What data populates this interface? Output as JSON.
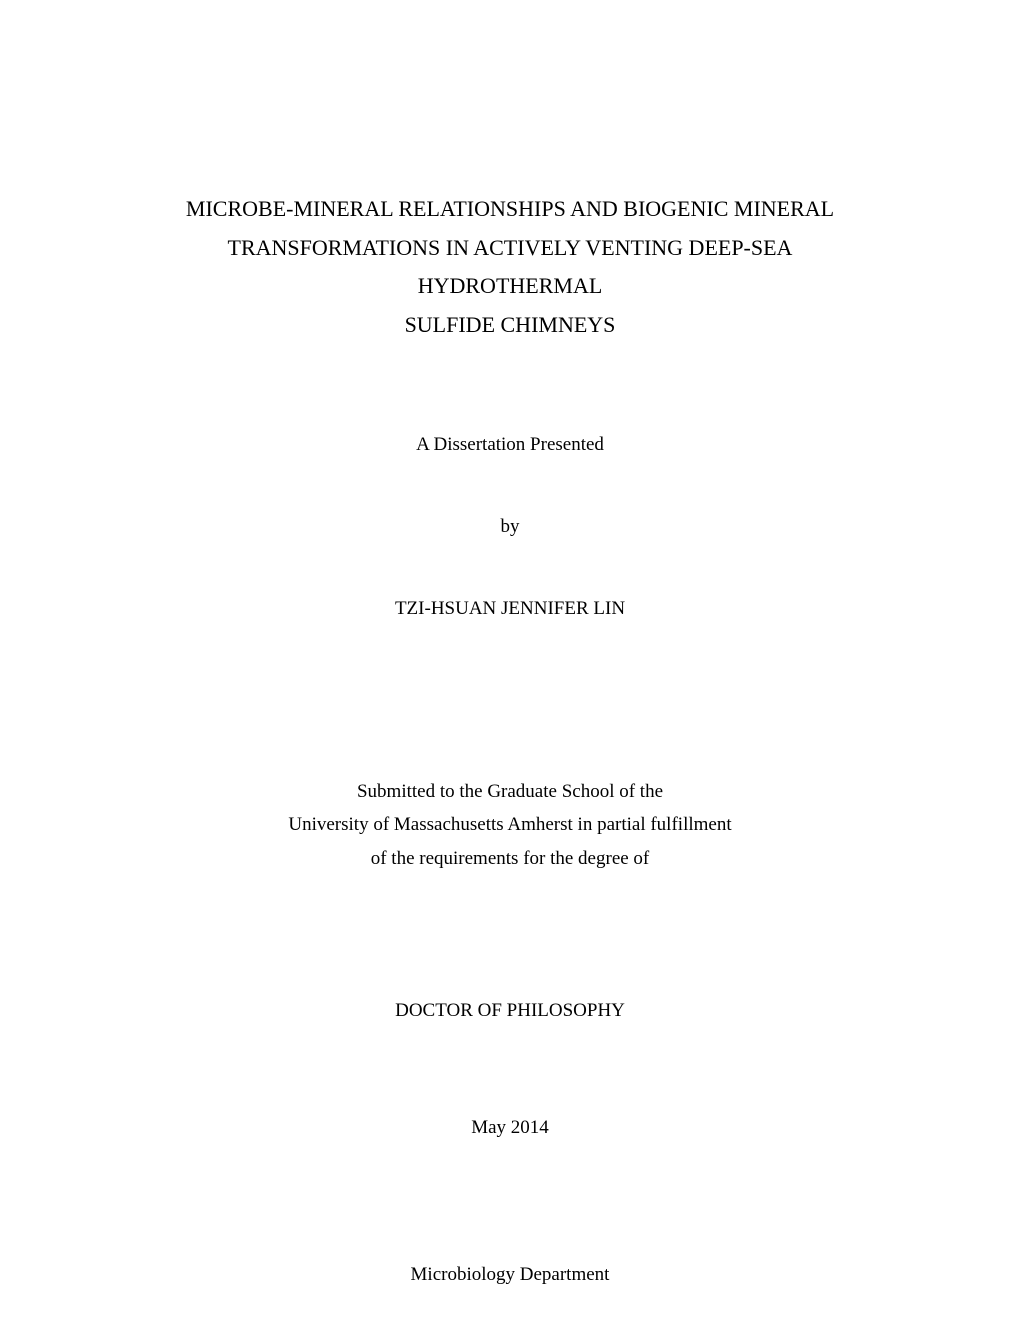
{
  "document": {
    "type": "dissertation-title-page",
    "background_color": "#ffffff",
    "text_color": "#000000",
    "font_family": "Times New Roman",
    "title_fontsize": 22,
    "body_fontsize": 19,
    "title": {
      "line1": "MICROBE-MINERAL RELATIONSHIPS AND BIOGENIC MINERAL",
      "line2": "TRANSFORMATIONS IN ACTIVELY VENTING DEEP-SEA HYDROTHERMAL",
      "line3": "SULFIDE CHIMNEYS"
    },
    "subtitle": "A Dissertation Presented",
    "by_label": "by",
    "author": "TZI-HSUAN JENNIFER LIN",
    "submission": {
      "line1": "Submitted to the Graduate School of the",
      "line2": "University of Massachusetts Amherst in partial fulfillment",
      "line3": "of the requirements for the degree of"
    },
    "degree": "DOCTOR OF PHILOSOPHY",
    "date": "May 2014",
    "department": "Microbiology Department"
  }
}
